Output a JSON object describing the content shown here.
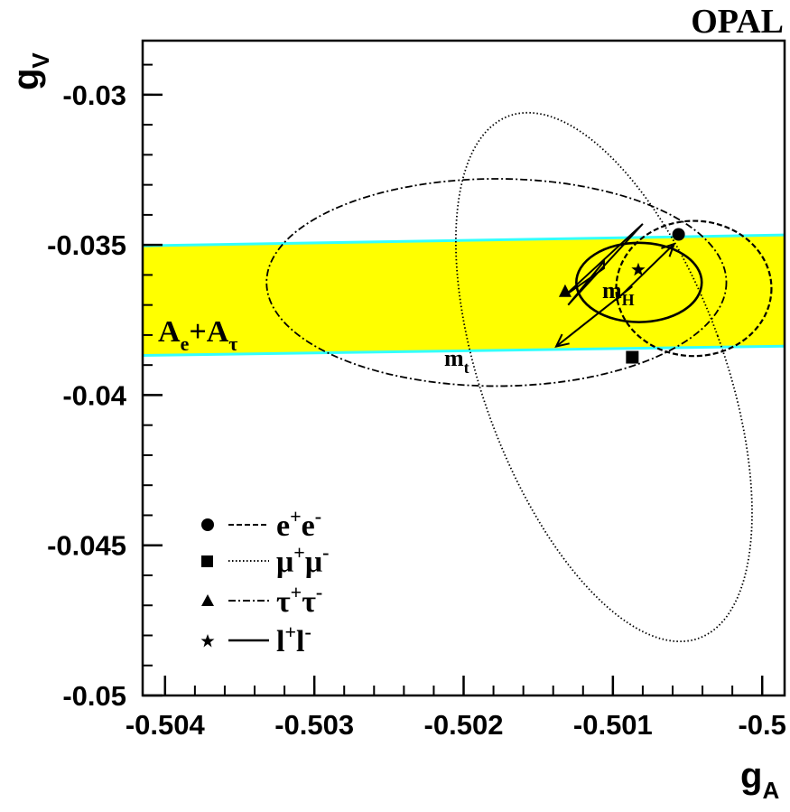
{
  "chart_data": {
    "type": "scatter",
    "title": "OPAL",
    "xlabel": "g",
    "xlabel_sub": "A",
    "ylabel": "g",
    "ylabel_sub": "V",
    "xlim": [
      -0.50415,
      -0.49985
    ],
    "ylim": [
      -0.05,
      -0.0282
    ],
    "x_ticks": [
      -0.504,
      -0.503,
      -0.502,
      -0.501,
      -0.5
    ],
    "x_tick_labels": [
      "-0.504",
      "-0.503",
      "-0.502",
      "-0.501",
      "-0.5"
    ],
    "y_ticks": [
      -0.05,
      -0.045,
      -0.04,
      -0.035,
      -0.03
    ],
    "y_tick_labels": [
      "-0.05",
      "-0.045",
      "-0.04",
      "-0.035",
      "-0.03"
    ],
    "band": {
      "label_main": "A",
      "label_sub1": "e",
      "label_plus": "+",
      "label_main2": "A",
      "label_sub2": "τ",
      "fill_color": "#ffff00",
      "edge_color": "#33ffff",
      "upper": [
        [
          -0.50415,
          -0.03503
        ],
        [
          -0.49985,
          -0.03467
        ]
      ],
      "lower": [
        [
          -0.50415,
          -0.03868
        ],
        [
          -0.49985,
          -0.03837
        ]
      ]
    },
    "series": [
      {
        "name": "e+e-",
        "marker": "circle",
        "line": "dashed",
        "point": [
          -0.50056,
          -0.03465
        ],
        "ellipse": {
          "cx": -0.500458,
          "cy": -0.03645,
          "rx": 0.00052,
          "ry": 0.00225
        }
      },
      {
        "name": "μ+μ-",
        "marker": "square",
        "line": "dotted",
        "point": [
          -0.50087,
          -0.03874
        ],
        "ellipse": {
          "cx": -0.50106,
          "cy": -0.0394,
          "rx": 0.00081,
          "ry": 0.00925,
          "angle": -20
        }
      },
      {
        "name": "τ+τ-",
        "marker": "triangle",
        "line": "dashdot",
        "point": [
          -0.50132,
          -0.03655
        ],
        "ellipse": {
          "cx": -0.50178,
          "cy": -0.03625,
          "rx": 0.00154,
          "ry": 0.00345
        }
      },
      {
        "name": "l+l-",
        "marker": "star",
        "line": "solid",
        "point": [
          -0.50083,
          -0.03583
        ],
        "ellipse": {
          "cx": -0.500825,
          "cy": -0.03625,
          "rx": 0.00042,
          "ry": 0.00132
        }
      }
    ],
    "sm_prediction": {
      "outline": [
        [
          -0.5013,
          -0.037
        ],
        [
          -0.5008,
          -0.0343
        ],
        [
          -0.50132,
          -0.03668
        ],
        [
          -0.50106,
          -0.03578
        ],
        [
          -0.50106,
          -0.03555
        ],
        [
          -0.5013,
          -0.037
        ]
      ],
      "arrows": [
        {
          "label_main": "m",
          "label_sub": "H",
          "from": [
            -0.50098,
            -0.03685
          ],
          "to": [
            -0.50059,
            -0.03497
          ]
        },
        {
          "label_main": "m",
          "label_sub": "t",
          "from": [
            -0.50087,
            -0.03638
          ],
          "to": [
            -0.50138,
            -0.03838
          ]
        }
      ]
    },
    "legend": {
      "position": "bottom-left",
      "entries": [
        {
          "main": "e",
          "sup1": "+",
          "main2": "e",
          "sup2": "-"
        },
        {
          "main": "μ",
          "sup1": "+",
          "main2": "μ",
          "sup2": "-"
        },
        {
          "main": "τ",
          "sup1": "+",
          "main2": "τ",
          "sup2": "-"
        },
        {
          "main": "l",
          "sup1": "+",
          "main2": "l",
          "sup2": "-"
        }
      ]
    },
    "grid": false
  }
}
